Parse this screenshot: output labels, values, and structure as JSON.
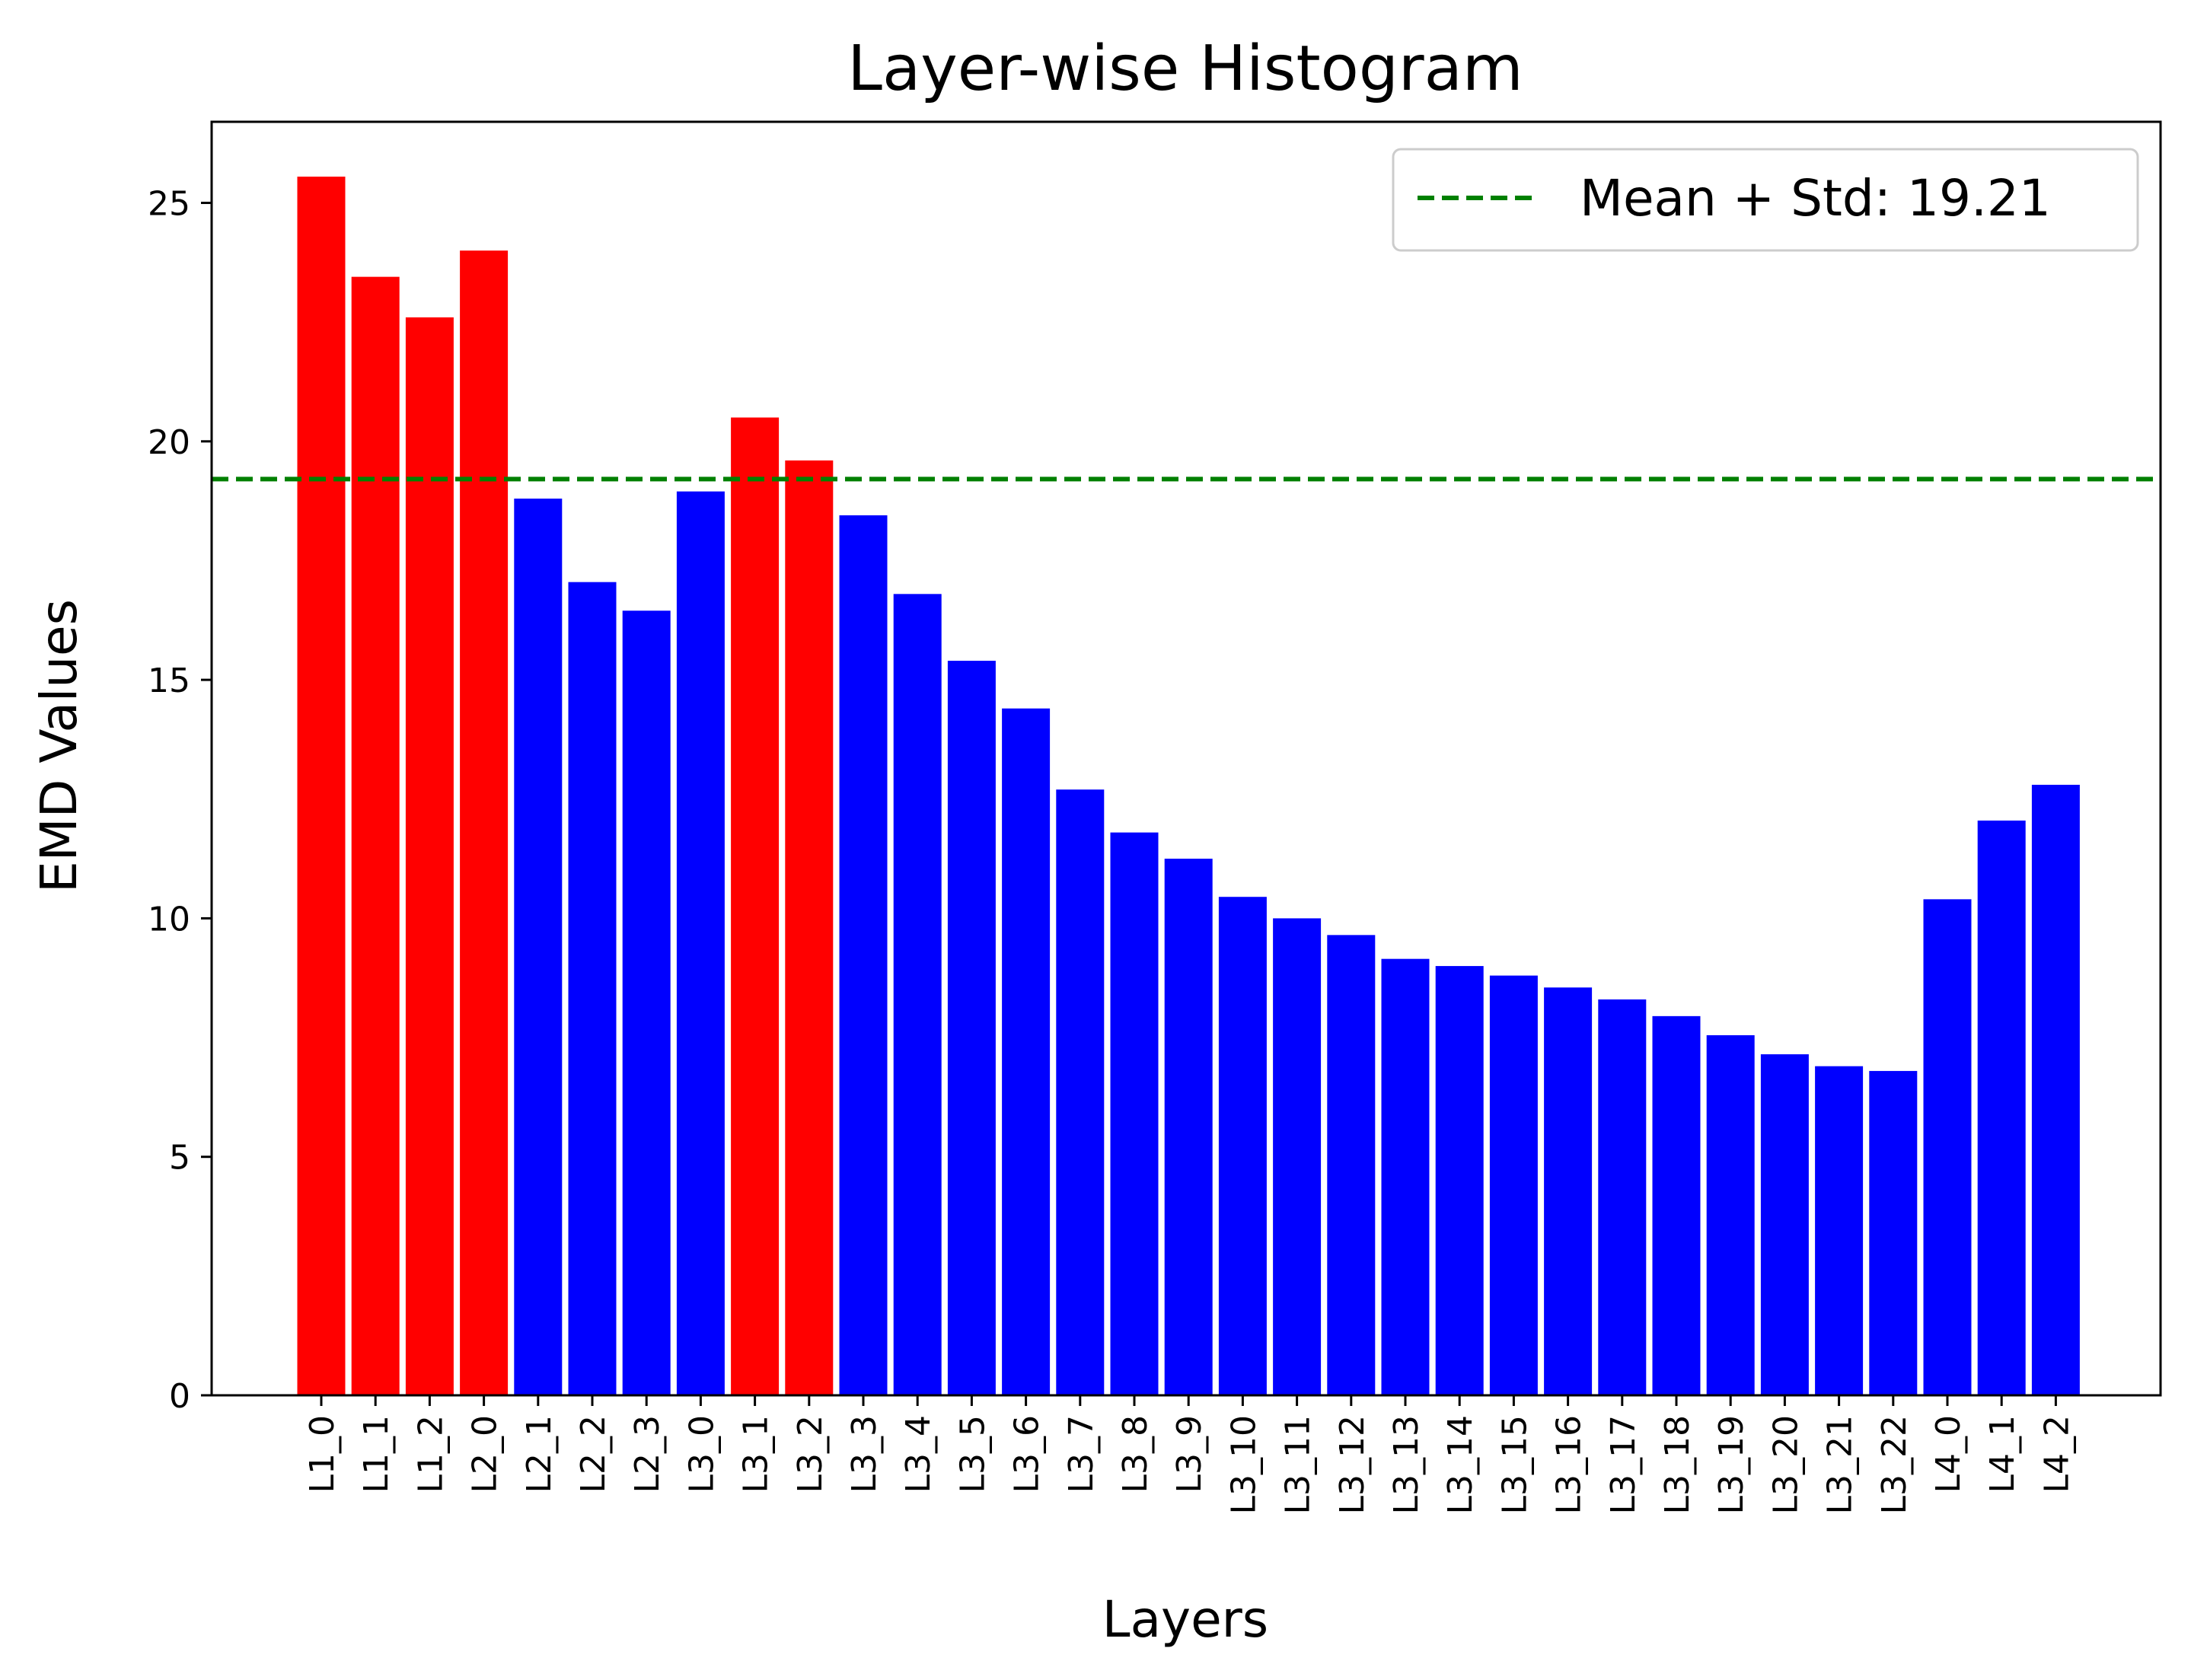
{
  "chart_data": {
    "type": "bar",
    "title": "Layer-wise Histogram",
    "xlabel": "Layers",
    "ylabel": "EMD Values",
    "ylim": [
      0,
      26.7
    ],
    "yticks": [
      0,
      5,
      10,
      15,
      20,
      25
    ],
    "categories": [
      "L1_0",
      "L1_1",
      "L1_2",
      "L2_0",
      "L2_1",
      "L2_2",
      "L2_3",
      "L3_0",
      "L3_1",
      "L3_2",
      "L3_3",
      "L3_4",
      "L3_5",
      "L3_6",
      "L3_7",
      "L3_8",
      "L3_9",
      "L3_10",
      "L3_11",
      "L3_12",
      "L3_13",
      "L3_14",
      "L3_15",
      "L3_16",
      "L3_17",
      "L3_18",
      "L3_19",
      "L3_20",
      "L3_21",
      "L3_22",
      "L4_0",
      "L4_1",
      "L4_2"
    ],
    "values": [
      25.55,
      23.45,
      22.6,
      24.0,
      18.8,
      17.05,
      16.45,
      18.95,
      20.5,
      19.6,
      18.45,
      16.8,
      15.4,
      14.4,
      12.7,
      11.8,
      11.25,
      10.45,
      10.0,
      9.65,
      9.15,
      9.0,
      8.8,
      8.55,
      8.3,
      7.95,
      7.55,
      7.15,
      6.9,
      6.8,
      10.4,
      12.05,
      12.8
    ],
    "threshold": {
      "label": "Mean + Std: 19.21",
      "value": 19.21,
      "color": "#008000",
      "style": "dashed"
    },
    "colors": {
      "above": "#ff0000",
      "below": "#0000ff"
    },
    "legend_position": "top-right",
    "grid": false
  }
}
